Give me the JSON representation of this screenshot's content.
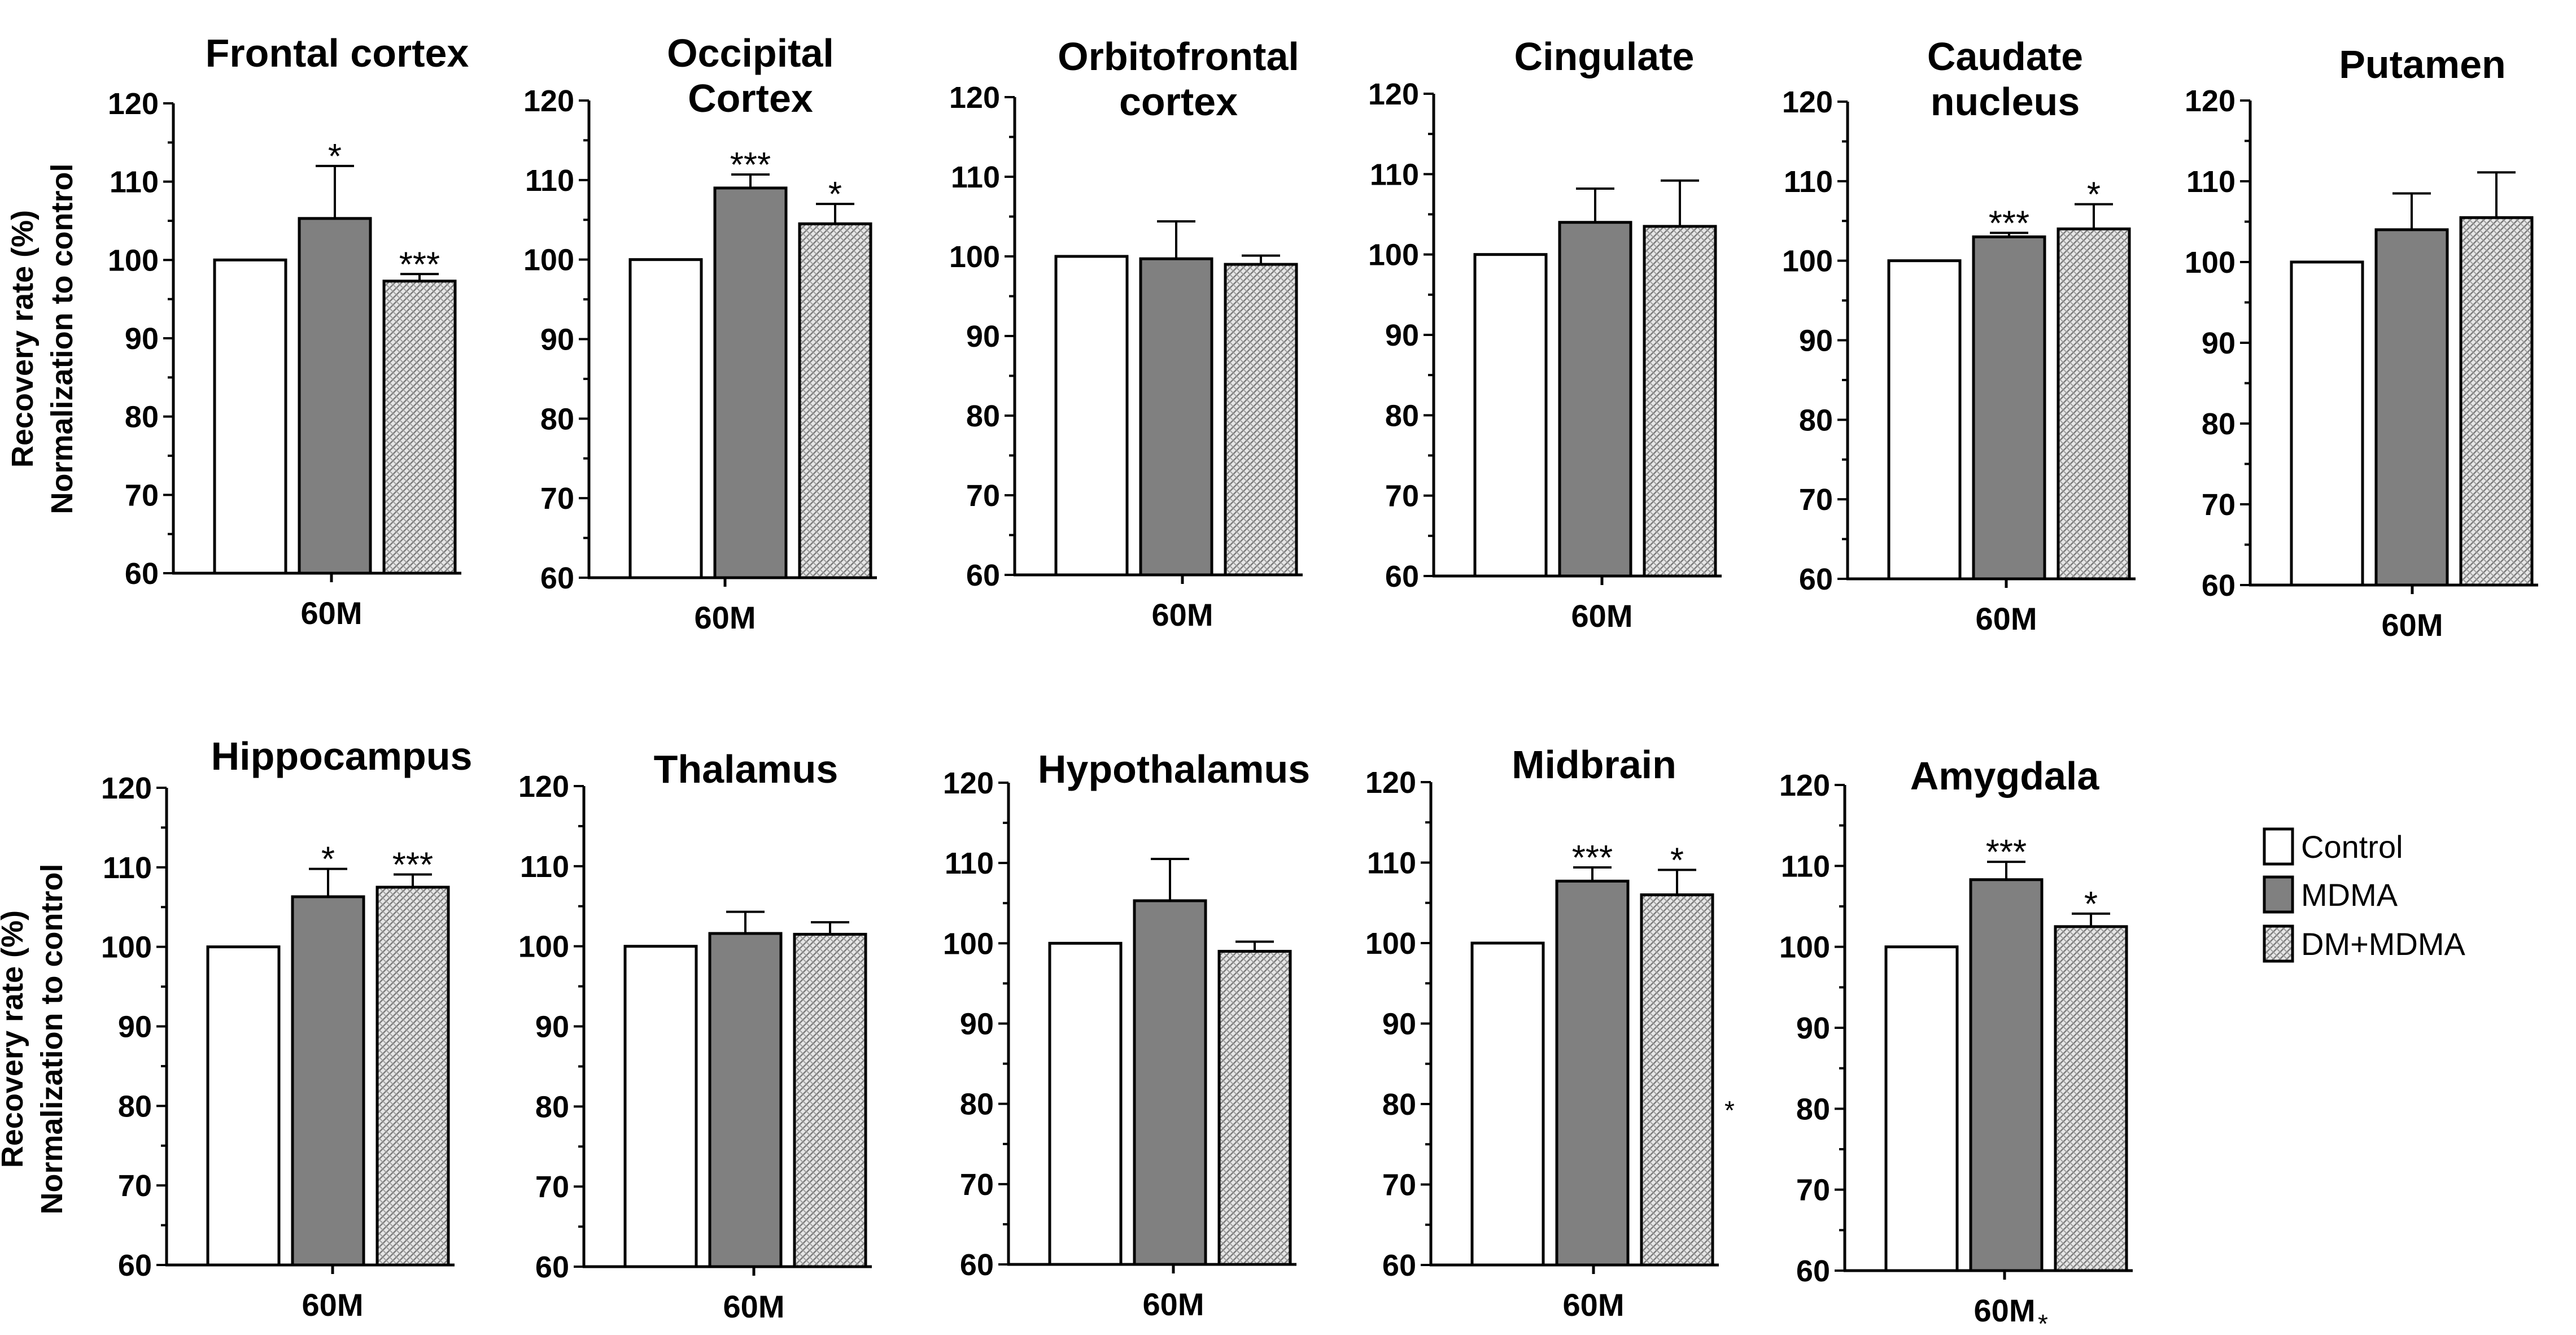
{
  "figure": {
    "ylabel_lines": [
      "Recovery rate (%)",
      "Normalization to control"
    ],
    "ylim": [
      60,
      120
    ],
    "yticks": [
      60,
      70,
      80,
      90,
      100,
      110,
      120
    ],
    "legend": {
      "placement": "right",
      "items": [
        {
          "label": "Control",
          "fill": "#ffffff"
        },
        {
          "label": "MDMA",
          "fill": "#808080"
        },
        {
          "label": "DM+MDMA",
          "fill": "hatched"
        }
      ]
    },
    "colors": {
      "control": "#ffffff",
      "mdma": "#808080",
      "dm_mdma": "#d3d3d3",
      "stroke": "#000000"
    },
    "stray_marks": [
      "*",
      "*"
    ]
  },
  "chart_data": [
    {
      "type": "bar",
      "title": [
        "Frontal cortex"
      ],
      "categories": [
        "60M"
      ],
      "ylim": [
        60,
        120
      ],
      "series": [
        {
          "name": "Control",
          "values": [
            100
          ],
          "error": [
            0
          ],
          "sig": [
            ""
          ]
        },
        {
          "name": "MDMA",
          "values": [
            105.3
          ],
          "error": [
            6.7
          ],
          "sig": [
            "*"
          ]
        },
        {
          "name": "DM+MDMA",
          "values": [
            97.3
          ],
          "error": [
            0.9
          ],
          "sig": [
            "***"
          ]
        }
      ]
    },
    {
      "type": "bar",
      "title": [
        "Occipital",
        "Cortex"
      ],
      "categories": [
        "60M"
      ],
      "ylim": [
        60,
        120
      ],
      "series": [
        {
          "name": "Control",
          "values": [
            100
          ],
          "error": [
            0
          ],
          "sig": [
            ""
          ]
        },
        {
          "name": "MDMA",
          "values": [
            109
          ],
          "error": [
            1.7
          ],
          "sig": [
            "***"
          ]
        },
        {
          "name": "DM+MDMA",
          "values": [
            104.5
          ],
          "error": [
            2.5
          ],
          "sig": [
            "*"
          ]
        }
      ]
    },
    {
      "type": "bar",
      "title": [
        "Orbitofrontal",
        "cortex"
      ],
      "categories": [
        "60M"
      ],
      "ylim": [
        60,
        120
      ],
      "series": [
        {
          "name": "Control",
          "values": [
            100
          ],
          "error": [
            0
          ],
          "sig": [
            ""
          ]
        },
        {
          "name": "MDMA",
          "values": [
            99.7
          ],
          "error": [
            4.7
          ],
          "sig": [
            ""
          ]
        },
        {
          "name": "DM+MDMA",
          "values": [
            99
          ],
          "error": [
            1.1
          ],
          "sig": [
            ""
          ]
        }
      ]
    },
    {
      "type": "bar",
      "title": [
        "Cingulate"
      ],
      "categories": [
        "60M"
      ],
      "ylim": [
        60,
        120
      ],
      "series": [
        {
          "name": "Control",
          "values": [
            100
          ],
          "error": [
            0
          ],
          "sig": [
            ""
          ]
        },
        {
          "name": "MDMA",
          "values": [
            104
          ],
          "error": [
            4.2
          ],
          "sig": [
            ""
          ]
        },
        {
          "name": "DM+MDMA",
          "values": [
            103.5
          ],
          "error": [
            5.7
          ],
          "sig": [
            ""
          ]
        }
      ]
    },
    {
      "type": "bar",
      "title": [
        "Caudate",
        "nucleus"
      ],
      "categories": [
        "60M"
      ],
      "ylim": [
        60,
        120
      ],
      "series": [
        {
          "name": "Control",
          "values": [
            100
          ],
          "error": [
            0
          ],
          "sig": [
            ""
          ]
        },
        {
          "name": "MDMA",
          "values": [
            103
          ],
          "error": [
            0.5
          ],
          "sig": [
            "***"
          ]
        },
        {
          "name": "DM+MDMA",
          "values": [
            104
          ],
          "error": [
            3.1
          ],
          "sig": [
            "*"
          ]
        }
      ]
    },
    {
      "type": "bar",
      "title": [
        "Putamen"
      ],
      "categories": [
        "60M"
      ],
      "ylim": [
        60,
        120
      ],
      "series": [
        {
          "name": "Control",
          "values": [
            100
          ],
          "error": [
            0
          ],
          "sig": [
            ""
          ]
        },
        {
          "name": "MDMA",
          "values": [
            104
          ],
          "error": [
            4.5
          ],
          "sig": [
            ""
          ]
        },
        {
          "name": "DM+MDMA",
          "values": [
            105.5
          ],
          "error": [
            5.6
          ],
          "sig": [
            ""
          ]
        }
      ]
    },
    {
      "type": "bar",
      "title": [
        "Hippocampus"
      ],
      "categories": [
        "60M"
      ],
      "ylim": [
        60,
        120
      ],
      "series": [
        {
          "name": "Control",
          "values": [
            100
          ],
          "error": [
            0
          ],
          "sig": [
            ""
          ]
        },
        {
          "name": "MDMA",
          "values": [
            106.3
          ],
          "error": [
            3.5
          ],
          "sig": [
            "*"
          ]
        },
        {
          "name": "DM+MDMA",
          "values": [
            107.5
          ],
          "error": [
            1.6
          ],
          "sig": [
            "***"
          ]
        }
      ]
    },
    {
      "type": "bar",
      "title": [
        "Thalamus"
      ],
      "categories": [
        "60M"
      ],
      "ylim": [
        60,
        120
      ],
      "series": [
        {
          "name": "Control",
          "values": [
            100
          ],
          "error": [
            0
          ],
          "sig": [
            ""
          ]
        },
        {
          "name": "MDMA",
          "values": [
            101.6
          ],
          "error": [
            2.7
          ],
          "sig": [
            ""
          ]
        },
        {
          "name": "DM+MDMA",
          "values": [
            101.5
          ],
          "error": [
            1.5
          ],
          "sig": [
            ""
          ]
        }
      ]
    },
    {
      "type": "bar",
      "title": [
        "Hypothalamus"
      ],
      "categories": [
        "60M"
      ],
      "ylim": [
        60,
        120
      ],
      "series": [
        {
          "name": "Control",
          "values": [
            100
          ],
          "error": [
            0
          ],
          "sig": [
            ""
          ]
        },
        {
          "name": "MDMA",
          "values": [
            105.3
          ],
          "error": [
            5.2
          ],
          "sig": [
            ""
          ]
        },
        {
          "name": "DM+MDMA",
          "values": [
            99
          ],
          "error": [
            1.2
          ],
          "sig": [
            ""
          ]
        }
      ]
    },
    {
      "type": "bar",
      "title": [
        "Midbrain"
      ],
      "categories": [
        "60M"
      ],
      "ylim": [
        60,
        120
      ],
      "series": [
        {
          "name": "Control",
          "values": [
            100
          ],
          "error": [
            0
          ],
          "sig": [
            ""
          ]
        },
        {
          "name": "MDMA",
          "values": [
            107.7
          ],
          "error": [
            1.7
          ],
          "sig": [
            "***"
          ]
        },
        {
          "name": "DM+MDMA",
          "values": [
            106
          ],
          "error": [
            3.1
          ],
          "sig": [
            "*"
          ]
        }
      ]
    },
    {
      "type": "bar",
      "title": [
        "Amygdala"
      ],
      "categories": [
        "60M"
      ],
      "ylim": [
        60,
        120
      ],
      "series": [
        {
          "name": "Control",
          "values": [
            100
          ],
          "error": [
            0
          ],
          "sig": [
            ""
          ]
        },
        {
          "name": "MDMA",
          "values": [
            108.3
          ],
          "error": [
            2.2
          ],
          "sig": [
            "***"
          ]
        },
        {
          "name": "DM+MDMA",
          "values": [
            102.5
          ],
          "error": [
            1.6
          ],
          "sig": [
            "*"
          ]
        }
      ]
    }
  ]
}
